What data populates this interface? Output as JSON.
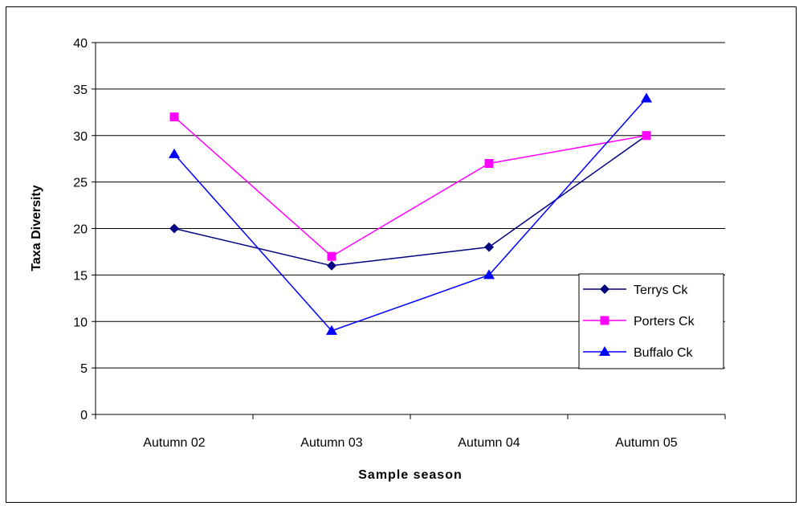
{
  "chart_data": {
    "type": "line",
    "title": "",
    "xlabel": "Sample season",
    "ylabel": "Taxa Diversity",
    "categories": [
      "Autumn 02",
      "Autumn 03",
      "Autumn 04",
      "Autumn 05"
    ],
    "ylim": [
      0,
      40
    ],
    "yticks": [
      0,
      5,
      10,
      15,
      20,
      25,
      30,
      35,
      40
    ],
    "grid": true,
    "legend_position": "right",
    "series": [
      {
        "name": "Terrys Ck",
        "values": [
          20,
          16,
          18,
          30
        ],
        "color": "#000080",
        "marker": "diamond"
      },
      {
        "name": "Porters Ck",
        "values": [
          32,
          17,
          27,
          30
        ],
        "color": "#FF00FF",
        "marker": "square"
      },
      {
        "name": "Buffalo Ck",
        "values": [
          28,
          9,
          15,
          34
        ],
        "color": "#0000FF",
        "marker": "triangle"
      }
    ]
  }
}
